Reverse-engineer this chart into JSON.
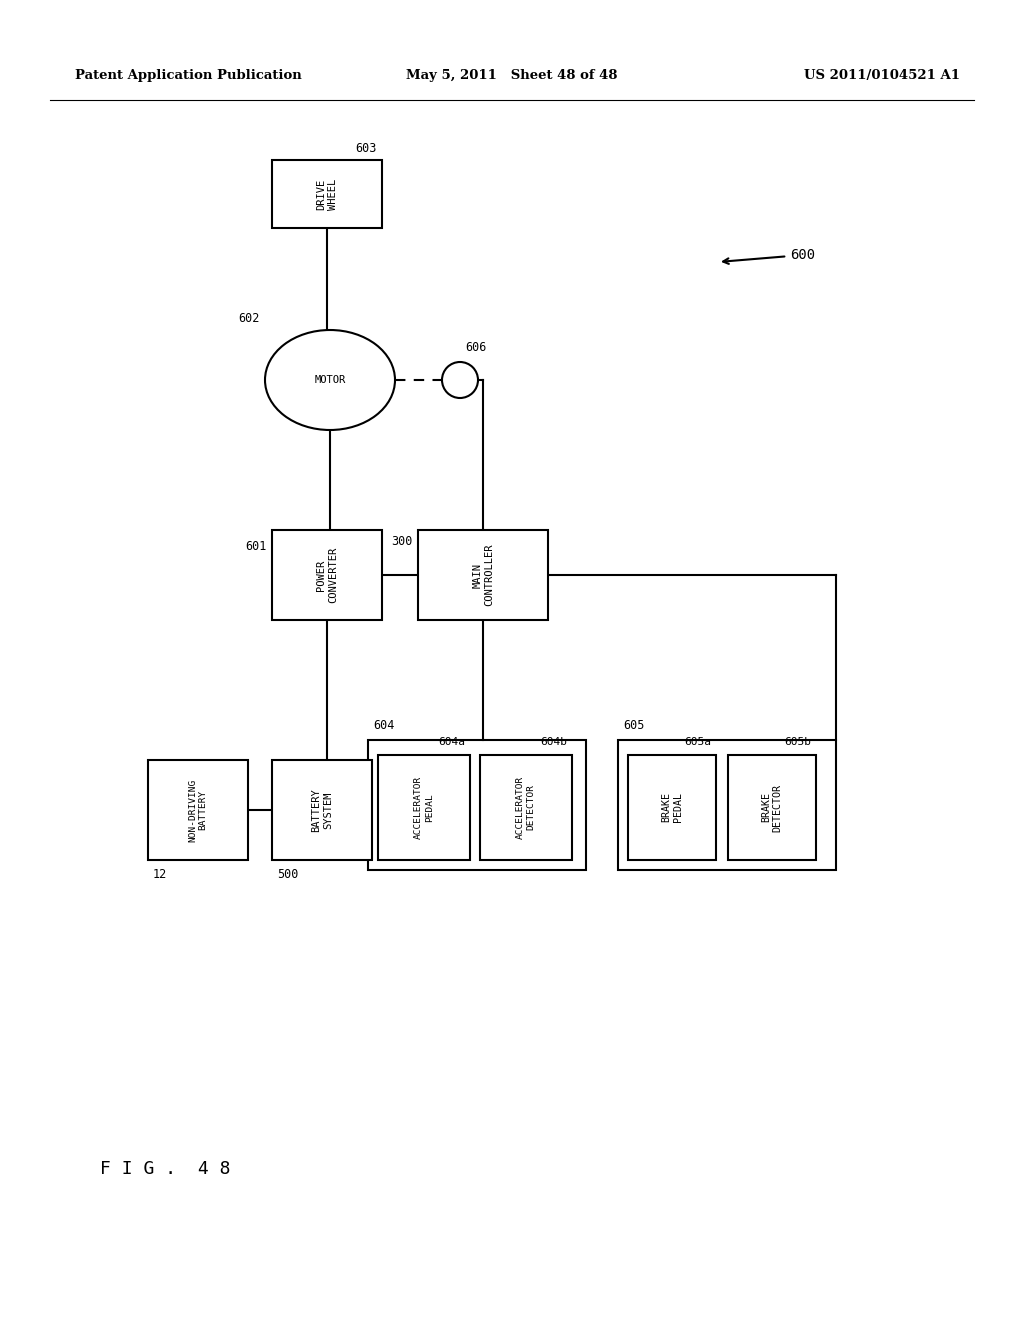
{
  "header_left": "Patent Application Publication",
  "header_mid": "May 5, 2011   Sheet 48 of 48",
  "header_right": "US 2011/0104521 A1",
  "figure_label": "F I G .  4 8",
  "background_color": "#ffffff",
  "fig_width": 10.24,
  "fig_height": 13.2,
  "dpi": 100
}
